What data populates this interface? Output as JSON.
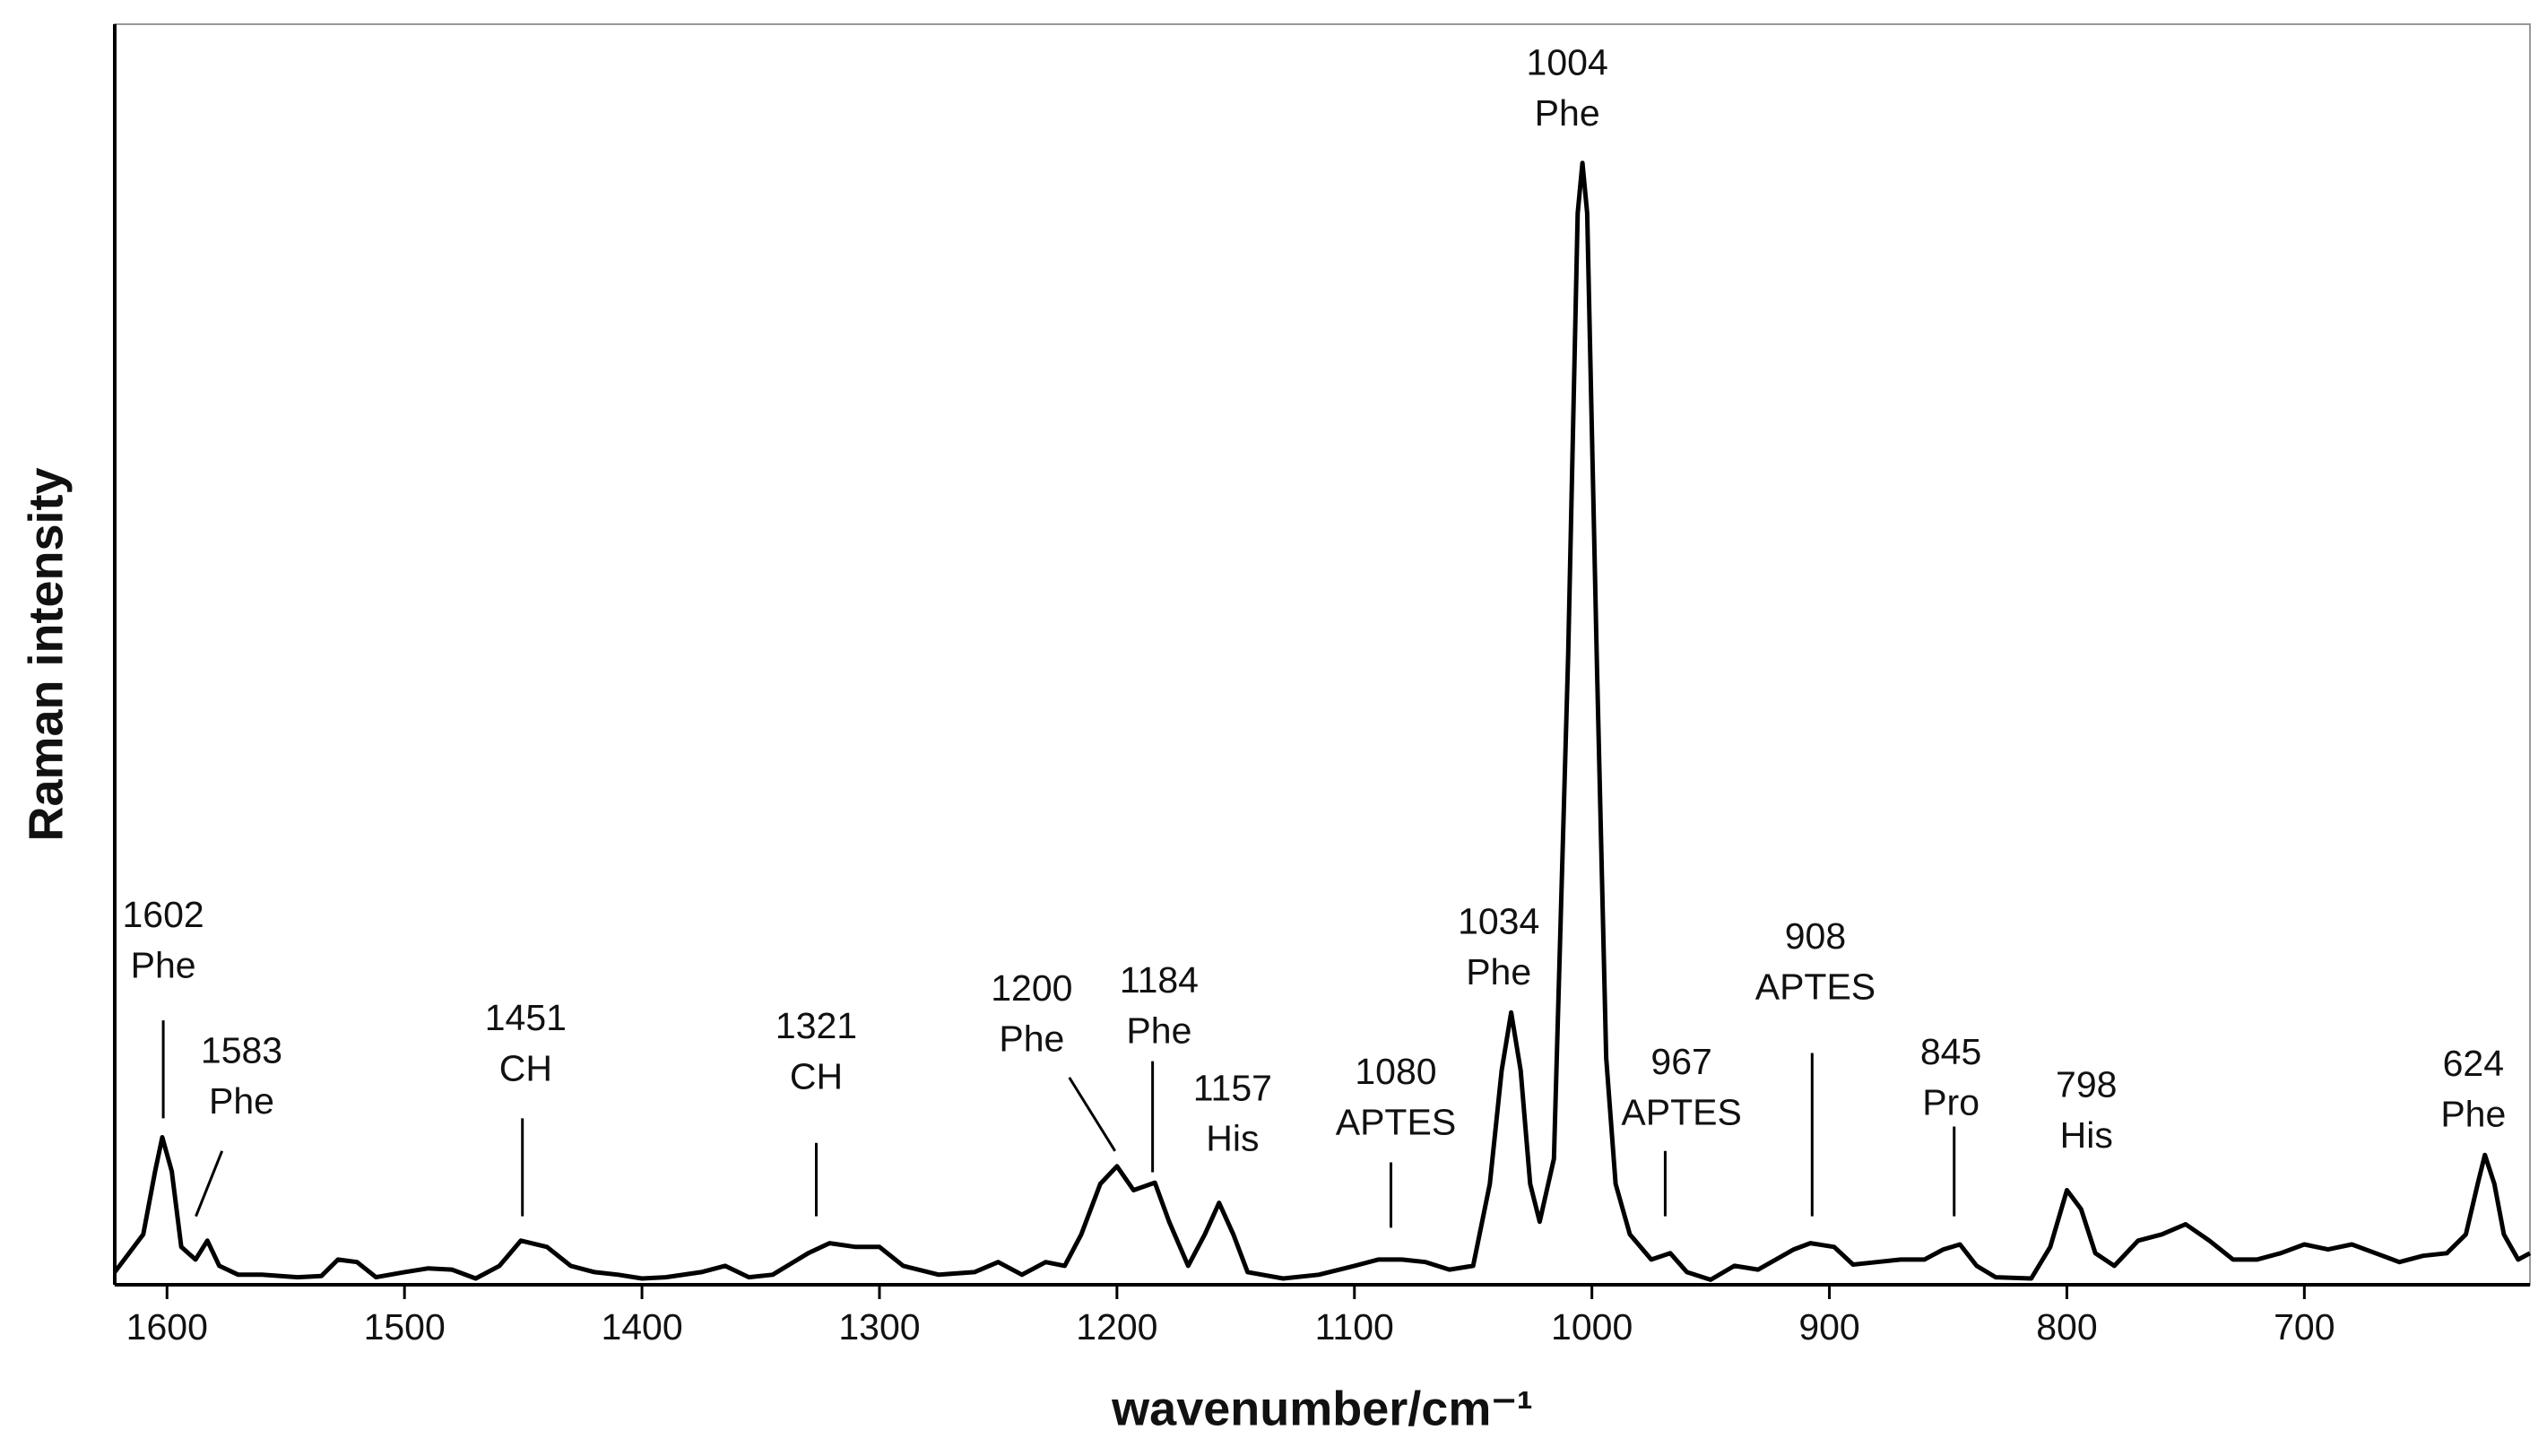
{
  "chart_data": {
    "type": "line",
    "xlabel": "wavenumber/cm⁻¹",
    "ylabel": "Raman intensity",
    "color": "#000000",
    "xlim": [
      1622,
      605
    ],
    "ylim": [
      0,
      100
    ],
    "xticks": [
      1600,
      1500,
      1400,
      1300,
      1200,
      1100,
      1000,
      900,
      800,
      700
    ],
    "x": [
      1622,
      1610,
      1605,
      1602,
      1598,
      1594,
      1588,
      1583,
      1578,
      1570,
      1560,
      1545,
      1535,
      1528,
      1520,
      1512,
      1500,
      1490,
      1480,
      1470,
      1460,
      1451,
      1440,
      1430,
      1420,
      1410,
      1400,
      1390,
      1375,
      1365,
      1355,
      1345,
      1330,
      1321,
      1310,
      1300,
      1290,
      1275,
      1260,
      1250,
      1240,
      1230,
      1222,
      1215,
      1207,
      1200,
      1193,
      1184,
      1178,
      1170,
      1163,
      1157,
      1151,
      1145,
      1130,
      1115,
      1100,
      1090,
      1080,
      1070,
      1060,
      1050,
      1043,
      1038,
      1034,
      1030,
      1026,
      1022,
      1016,
      1010,
      1006,
      1004,
      1002,
      998,
      994,
      990,
      984,
      975,
      967,
      960,
      950,
      940,
      930,
      915,
      908,
      898,
      890,
      880,
      870,
      860,
      852,
      845,
      838,
      830,
      815,
      807,
      800,
      794,
      788,
      780,
      770,
      760,
      750,
      740,
      730,
      720,
      710,
      700,
      690,
      680,
      670,
      660,
      650,
      640,
      632,
      627,
      624,
      620,
      616,
      610,
      605
    ],
    "values": [
      1.0,
      4,
      9,
      11.7,
      9,
      3,
      2,
      3.5,
      1.5,
      0.8,
      0.8,
      0.6,
      0.7,
      2,
      1.8,
      0.6,
      1.0,
      1.3,
      1.2,
      0.5,
      1.5,
      3.5,
      3.0,
      1.5,
      1.0,
      0.8,
      0.5,
      0.6,
      1.0,
      1.5,
      0.6,
      0.8,
      2.5,
      3.3,
      3.0,
      3.0,
      1.5,
      0.8,
      1.0,
      1.8,
      0.8,
      1.8,
      1.5,
      4,
      8,
      9.4,
      7.5,
      8.1,
      5,
      1.5,
      4,
      6.5,
      4,
      1,
      0.5,
      0.8,
      1.5,
      2.0,
      2.0,
      1.8,
      1.2,
      1.5,
      8,
      17,
      21.6,
      17,
      8,
      5,
      10,
      50,
      85,
      89,
      85,
      50,
      18,
      8,
      4,
      2,
      2.5,
      1.0,
      0.4,
      1.5,
      1.2,
      2.8,
      3.3,
      3.0,
      1.6,
      1.8,
      2.0,
      2.0,
      2.8,
      3.2,
      1.5,
      0.6,
      0.5,
      3,
      7.5,
      6,
      2.5,
      1.5,
      3.5,
      4,
      4.8,
      3.5,
      2.0,
      2.0,
      2.5,
      3.2,
      2.8,
      3.2,
      2.5,
      1.8,
      2.3,
      2.5,
      4,
      8,
      10.3,
      8,
      4,
      2,
      2.5
    ],
    "annotations": [
      {
        "wavenumber": 1602,
        "assignment": "Phe"
      },
      {
        "wavenumber": 1583,
        "assignment": "Phe"
      },
      {
        "wavenumber": 1451,
        "assignment": "CH"
      },
      {
        "wavenumber": 1321,
        "assignment": "CH"
      },
      {
        "wavenumber": 1200,
        "assignment": "Phe"
      },
      {
        "wavenumber": 1184,
        "assignment": "Phe"
      },
      {
        "wavenumber": 1157,
        "assignment": "His"
      },
      {
        "wavenumber": 1080,
        "assignment": "APTES"
      },
      {
        "wavenumber": 1034,
        "assignment": "Phe"
      },
      {
        "wavenumber": 1004,
        "assignment": "Phe"
      },
      {
        "wavenumber": 967,
        "assignment": "APTES"
      },
      {
        "wavenumber": 908,
        "assignment": "APTES"
      },
      {
        "wavenumber": 845,
        "assignment": "Pro"
      },
      {
        "wavenumber": 798,
        "assignment": "His"
      },
      {
        "wavenumber": 624,
        "assignment": "Phe"
      }
    ]
  }
}
